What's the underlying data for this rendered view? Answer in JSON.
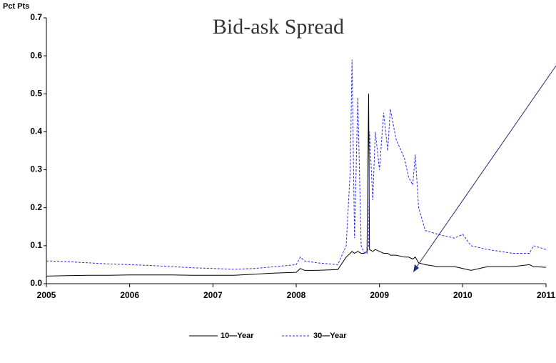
{
  "chart_data": {
    "type": "line",
    "title": "Bid-ask Spread",
    "y_label": "Pct Pts",
    "x": [
      2005,
      2005.25,
      2005.5,
      2005.75,
      2006,
      2006.25,
      2006.5,
      2006.75,
      2007,
      2007.25,
      2007.5,
      2007.75,
      2008,
      2008.05,
      2008.1,
      2008.25,
      2008.5,
      2008.6,
      2008.65,
      2008.67,
      2008.7,
      2008.74,
      2008.78,
      2008.82,
      2008.85,
      2008.87,
      2008.88,
      2008.92,
      2008.95,
      2009,
      2009.05,
      2009.1,
      2009.13,
      2009.2,
      2009.3,
      2009.35,
      2009.4,
      2009.43,
      2009.47,
      2009.55,
      2009.7,
      2009.9,
      2010,
      2010.1,
      2010.3,
      2010.6,
      2010.8,
      2010.85,
      2011
    ],
    "series": [
      {
        "name": "10—Year",
        "color": "#000000",
        "dash": false,
        "values": [
          0.02,
          0.021,
          0.022,
          0.022,
          0.023,
          0.023,
          0.023,
          0.022,
          0.022,
          0.022,
          0.025,
          0.028,
          0.03,
          0.04,
          0.035,
          0.035,
          0.037,
          0.07,
          0.08,
          0.085,
          0.08,
          0.085,
          0.08,
          0.08,
          0.085,
          0.5,
          0.09,
          0.085,
          0.09,
          0.085,
          0.08,
          0.08,
          0.075,
          0.075,
          0.07,
          0.07,
          0.065,
          0.07,
          0.055,
          0.05,
          0.045,
          0.045,
          0.04,
          0.035,
          0.045,
          0.045,
          0.05,
          0.045,
          0.043
        ]
      },
      {
        "name": "30—Year",
        "color": "#2b2bef",
        "dash": true,
        "values": [
          0.06,
          0.058,
          0.055,
          0.052,
          0.05,
          0.048,
          0.045,
          0.042,
          0.04,
          0.038,
          0.04,
          0.045,
          0.05,
          0.07,
          0.06,
          0.055,
          0.05,
          0.1,
          0.3,
          0.59,
          0.12,
          0.49,
          0.1,
          0.08,
          0.08,
          0.1,
          0.4,
          0.22,
          0.4,
          0.3,
          0.45,
          0.35,
          0.46,
          0.38,
          0.33,
          0.28,
          0.26,
          0.34,
          0.2,
          0.14,
          0.13,
          0.12,
          0.13,
          0.1,
          0.09,
          0.08,
          0.08,
          0.1,
          0.09
        ]
      }
    ],
    "xlim": [
      2005,
      2011
    ],
    "xticks": [
      2005,
      2006,
      2007,
      2008,
      2009,
      2010,
      2011
    ],
    "ylim": [
      0,
      0.7
    ],
    "yticks": [
      {
        "value": 0,
        "label": "0.0"
      },
      0.1,
      0.2,
      0.3,
      0.4,
      0.5,
      0.6,
      0.7
    ],
    "legend": "bottom"
  }
}
